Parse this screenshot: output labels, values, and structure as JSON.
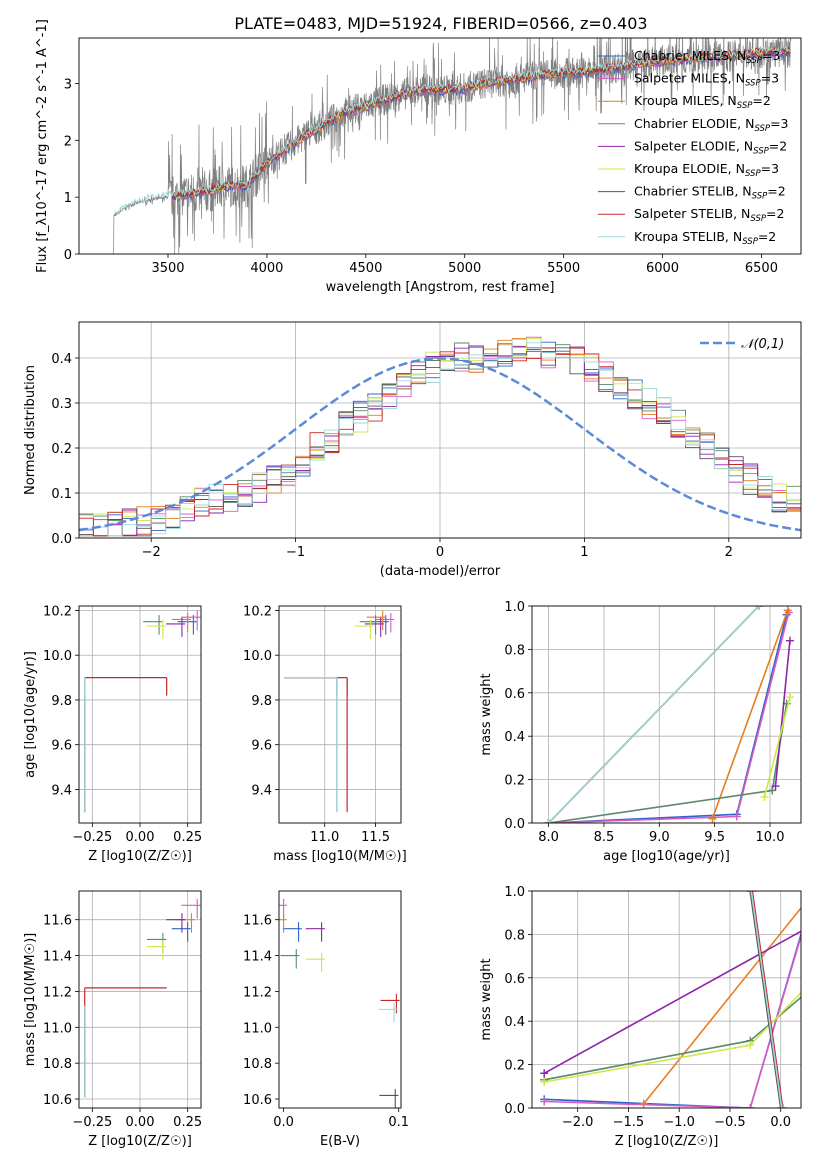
{
  "figure": {
    "title": "PLATE=0483, MJD=51924, FIBERID=0566, z=0.403"
  },
  "models": [
    {
      "name": "Chabrier MILES",
      "nssp": "3",
      "color": "#2d64c8"
    },
    {
      "name": "Salpeter MILES",
      "nssp": "3",
      "color": "#d85ac8"
    },
    {
      "name": "Kroupa MILES",
      "nssp": "2",
      "color": "#e67e22"
    },
    {
      "name": "Chabrier ELODIE",
      "nssp": "3",
      "color": "#5a8a6a"
    },
    {
      "name": "Salpeter ELODIE",
      "nssp": "2",
      "color": "#8e24aa"
    },
    {
      "name": "Kroupa ELODIE",
      "nssp": "3",
      "color": "#cde84a"
    },
    {
      "name": "Chabrier STELIB",
      "nssp": "2",
      "color": "#555555"
    },
    {
      "name": "Salpeter STELIB",
      "nssp": "2",
      "color": "#c62828"
    },
    {
      "name": "Kroupa STELIB",
      "nssp": "2",
      "color": "#9ed8dc"
    }
  ],
  "chart_data": [
    {
      "id": "spectrum",
      "type": "line",
      "xlabel": "wavelength [Angstrom, rest frame]",
      "ylabel": "Flux [f_λ10^-17 erg cm^-2 s^-1 A^-1]",
      "xlim": [
        3050,
        6700
      ],
      "ylim": [
        0,
        3.8
      ],
      "xticks": [
        3500,
        4000,
        4500,
        5000,
        5500,
        6000,
        6500
      ],
      "yticks": [
        0,
        1,
        2,
        3
      ],
      "grid": false,
      "legend": "right",
      "data_color": "#808080",
      "continuum": {
        "x": [
          3200,
          3300,
          3400,
          3500,
          3600,
          3700,
          3800,
          3900,
          4000,
          4100,
          4200,
          4300,
          4400,
          4500,
          4600,
          4700,
          4800,
          4900,
          5000,
          5100,
          5200,
          5300,
          5400,
          5500,
          5600,
          5700,
          5800,
          5900,
          6000,
          6100,
          6200,
          6300,
          6400,
          6500
        ],
        "y": [
          0.6,
          0.85,
          0.95,
          1.0,
          1.05,
          1.1,
          1.2,
          1.2,
          1.6,
          1.85,
          2.1,
          2.3,
          2.5,
          2.6,
          2.72,
          2.82,
          2.9,
          2.88,
          2.92,
          3.0,
          3.05,
          3.1,
          3.15,
          3.18,
          3.2,
          3.25,
          3.3,
          3.35,
          3.4,
          3.42,
          3.45,
          3.48,
          3.5,
          3.55
        ]
      },
      "data_start": 3220,
      "models_start": 3520
    },
    {
      "id": "residuals",
      "type": "bar",
      "xlabel": "(data-model)/error",
      "ylabel": "Normed distribution",
      "xlim": [
        -2.5,
        2.5
      ],
      "ylim": [
        0,
        0.48
      ],
      "xticks": [
        -2,
        -1,
        0,
        1,
        2
      ],
      "yticks": [
        0.0,
        0.1,
        0.2,
        0.3,
        0.4
      ],
      "grid": true,
      "legend": "top-right",
      "reference": {
        "label": "𝒩(0,1)",
        "color": "#5b8ad8"
      },
      "bin_width": 0.1,
      "bin_start": -2.5,
      "base_values": [
        0.02,
        0.02,
        0.025,
        0.03,
        0.035,
        0.04,
        0.05,
        0.06,
        0.08,
        0.09,
        0.09,
        0.1,
        0.11,
        0.13,
        0.15,
        0.17,
        0.2,
        0.22,
        0.25,
        0.27,
        0.29,
        0.32,
        0.34,
        0.36,
        0.38,
        0.39,
        0.4,
        0.4,
        0.41,
        0.41,
        0.42,
        0.42,
        0.41,
        0.4,
        0.39,
        0.38,
        0.36,
        0.34,
        0.32,
        0.3,
        0.28,
        0.25,
        0.22,
        0.2,
        0.17,
        0.15,
        0.13,
        0.11,
        0.09,
        0.08
      ]
    },
    {
      "id": "age_vs_Z",
      "type": "scatter",
      "xlabel": "Z [log10(Z/Z☉)]",
      "ylabel": "age [log10(age/yr)]",
      "xlim": [
        -0.32,
        0.32
      ],
      "ylim": [
        9.25,
        10.22
      ],
      "xticks": [
        -0.25,
        0.0,
        0.25
      ],
      "yticks": [
        9.4,
        9.6,
        9.8,
        10.0,
        10.2
      ],
      "grid": true,
      "points": [
        {
          "m": 0,
          "x": 0.28,
          "y": 10.15
        },
        {
          "m": 1,
          "x": 0.3,
          "y": 10.17
        },
        {
          "m": 2,
          "x": 0.25,
          "y": 10.16
        },
        {
          "m": 3,
          "x": 0.1,
          "y": 10.15
        },
        {
          "m": 4,
          "x": 0.22,
          "y": 10.14
        },
        {
          "m": 5,
          "x": 0.12,
          "y": 10.13
        },
        {
          "m": 6,
          "x": -0.29,
          "y": 9.9
        },
        {
          "m": 7,
          "x": 0.14,
          "y": 9.9
        },
        {
          "m": 8,
          "x": -0.29,
          "y": 9.9
        }
      ]
    },
    {
      "id": "age_vs_mass",
      "type": "scatter",
      "xlabel": "mass [log10(M/M☉)]",
      "ylabel": "",
      "xlim": [
        10.55,
        11.75
      ],
      "ylim": [
        9.25,
        10.22
      ],
      "xticks": [
        11.0,
        11.5
      ],
      "yticks": [
        9.4,
        9.6,
        9.8,
        10.0,
        10.2
      ],
      "grid": true,
      "points": [
        {
          "m": 0,
          "x": 11.6,
          "y": 10.15
        },
        {
          "m": 1,
          "x": 11.65,
          "y": 10.16
        },
        {
          "m": 2,
          "x": 11.57,
          "y": 10.17
        },
        {
          "m": 3,
          "x": 11.5,
          "y": 10.15
        },
        {
          "m": 4,
          "x": 11.55,
          "y": 10.14
        },
        {
          "m": 5,
          "x": 11.45,
          "y": 10.13
        },
        {
          "m": 6,
          "x": 11.12,
          "y": 9.9
        },
        {
          "m": 7,
          "x": 11.22,
          "y": 9.9
        },
        {
          "m": 8,
          "x": 11.12,
          "y": 9.9
        }
      ]
    },
    {
      "id": "weight_vs_age",
      "type": "line",
      "xlabel": "age [log10(age/yr)]",
      "ylabel": "mass weight",
      "xlim": [
        7.85,
        10.28
      ],
      "ylim": [
        0,
        1.0
      ],
      "xticks": [
        8.0,
        8.5,
        9.0,
        9.5,
        10.0
      ],
      "yticks": [
        0.0,
        0.2,
        0.4,
        0.6,
        0.8,
        1.0
      ],
      "grid": true,
      "series": [
        {
          "m": 0,
          "x": [
            8.0,
            9.7,
            10.15
          ],
          "y": [
            0.0,
            0.04,
            0.96
          ]
        },
        {
          "m": 1,
          "x": [
            8.0,
            9.7,
            10.17
          ],
          "y": [
            0.0,
            0.03,
            0.97
          ]
        },
        {
          "m": 2,
          "x": [
            9.48,
            10.16
          ],
          "y": [
            0.02,
            0.98
          ]
        },
        {
          "m": 3,
          "x": [
            8.0,
            10.02,
            10.15
          ],
          "y": [
            0.0,
            0.15,
            0.55
          ]
        },
        {
          "m": 4,
          "x": [
            10.05,
            10.18
          ],
          "y": [
            0.17,
            0.84
          ]
        },
        {
          "m": 5,
          "x": [
            9.95,
            10.18
          ],
          "y": [
            0.12,
            0.58
          ]
        },
        {
          "m": 6,
          "x": [
            8.0,
            9.9
          ],
          "y": [
            0.0,
            1.0
          ]
        },
        {
          "m": 7,
          "x": [
            8.0,
            9.9
          ],
          "y": [
            0.0,
            1.0
          ]
        },
        {
          "m": 8,
          "x": [
            8.0,
            9.9
          ],
          "y": [
            0.0,
            1.0
          ]
        }
      ]
    },
    {
      "id": "mass_vs_Z",
      "type": "scatter",
      "xlabel": "Z [log10(Z/Z☉)]",
      "ylabel": "mass [log10(M/M☉)]",
      "xlim": [
        -0.32,
        0.32
      ],
      "ylim": [
        10.55,
        11.76
      ],
      "xticks": [
        -0.25,
        0.0,
        0.25
      ],
      "yticks": [
        10.6,
        10.8,
        11.0,
        11.2,
        11.4,
        11.6
      ],
      "grid": true,
      "points": [
        {
          "m": 0,
          "x": 0.25,
          "y": 11.55
        },
        {
          "m": 1,
          "x": 0.3,
          "y": 11.68
        },
        {
          "m": 2,
          "x": 0.27,
          "y": 11.6
        },
        {
          "m": 3,
          "x": 0.12,
          "y": 11.49
        },
        {
          "m": 4,
          "x": 0.22,
          "y": 11.6
        },
        {
          "m": 5,
          "x": 0.12,
          "y": 11.45
        },
        {
          "m": 6,
          "x": -0.29,
          "y": 11.12
        },
        {
          "m": 7,
          "x": 0.14,
          "y": 11.22
        },
        {
          "m": 8,
          "x": -0.29,
          "y": 11.12
        }
      ]
    },
    {
      "id": "mass_vs_EBV",
      "type": "scatter",
      "xlabel": "E(B-V)",
      "ylabel": "",
      "xlim": [
        -0.004,
        0.102
      ],
      "ylim": [
        10.55,
        11.76
      ],
      "xticks": [
        0.0,
        0.1
      ],
      "yticks": [
        10.6,
        10.8,
        11.0,
        11.2,
        11.4,
        11.6
      ],
      "grid": false,
      "points": [
        {
          "m": 0,
          "x": 0.013,
          "y": 11.55
        },
        {
          "m": 1,
          "x": 0.0,
          "y": 11.68
        },
        {
          "m": 2,
          "x": 0.0,
          "y": 11.6
        },
        {
          "m": 3,
          "x": 0.011,
          "y": 11.4
        },
        {
          "m": 4,
          "x": 0.033,
          "y": 11.55
        },
        {
          "m": 5,
          "x": 0.033,
          "y": 11.38
        },
        {
          "m": 6,
          "x": 0.097,
          "y": 10.62
        },
        {
          "m": 7,
          "x": 0.098,
          "y": 11.15
        },
        {
          "m": 8,
          "x": 0.096,
          "y": 11.1
        }
      ]
    },
    {
      "id": "weight_vs_Z",
      "type": "line",
      "xlabel": "Z [log10(Z/Z☉)]",
      "ylabel": "mass weight",
      "xlim": [
        -2.45,
        0.2
      ],
      "ylim": [
        0,
        1.0
      ],
      "xticks": [
        -2.0,
        -1.5,
        -1.0,
        -0.5,
        0.0
      ],
      "yticks": [
        0.0,
        0.2,
        0.4,
        0.6,
        0.8,
        1.0
      ],
      "grid": true,
      "series": [
        {
          "m": 0,
          "x": [
            -2.33,
            -0.3,
            0.3
          ],
          "y": [
            0.04,
            0.0,
            0.96
          ]
        },
        {
          "m": 1,
          "x": [
            -2.33,
            -0.3,
            0.3
          ],
          "y": [
            0.03,
            0.0,
            0.95
          ]
        },
        {
          "m": 2,
          "x": [
            -1.35,
            0.3
          ],
          "y": [
            0.02,
            0.98
          ]
        },
        {
          "m": 3,
          "x": [
            -2.33,
            -0.3,
            0.3
          ],
          "y": [
            0.13,
            0.31,
            0.55
          ]
        },
        {
          "m": 4,
          "x": [
            -2.33,
            0.3
          ],
          "y": [
            0.16,
            0.84
          ]
        },
        {
          "m": 5,
          "x": [
            -2.33,
            -0.3,
            0.3
          ],
          "y": [
            0.12,
            0.29,
            0.58
          ]
        },
        {
          "m": 6,
          "x": [
            -0.3,
            0.0
          ],
          "y": [
            1.0,
            0.0
          ]
        },
        {
          "m": 7,
          "x": [
            -0.28,
            0.02
          ],
          "y": [
            1.0,
            0.0
          ]
        },
        {
          "m": 8,
          "x": [
            -0.29,
            0.01
          ],
          "y": [
            1.0,
            0.0
          ]
        }
      ]
    }
  ]
}
